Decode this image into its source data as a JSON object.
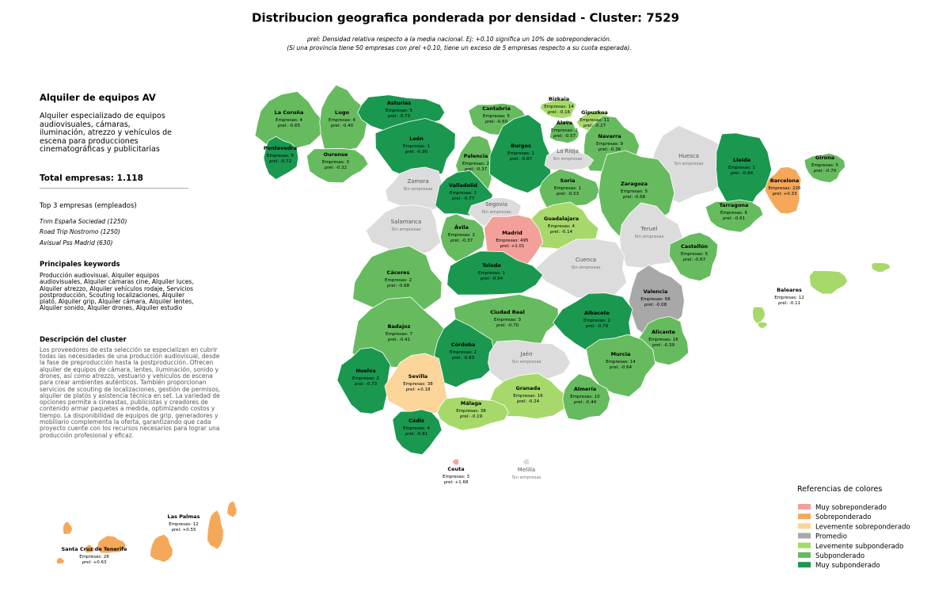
{
  "title": "Distribucion geografica ponderada por densidad - Cluster: 7529",
  "subtitle": [
    "ρrel: Densidad relativa respecto a la media nacional. Ej: +0.10 significa un 10% de sobreponderación.",
    "(Si una provincia tiene 50 empresas con ρrel +0.10, tiene un exceso de 5 empresas respecto a su cuota esperada)."
  ],
  "sidebar": {
    "heading": "Alquiler de equipos AV",
    "summary": "Alquiler especializado de equipos audiovisuales, cámaras, iluminación, atrezzo y vehículos de escena para producciones cinematográficas y publicitarias",
    "total": "Total empresas: 1.118",
    "top_title": "Top 3 empresas (empleados)",
    "top": [
      "Tnm España Sociedad (1250)",
      "Road Trip Nostromo (1250)",
      "Avisual Pss Madrid (630)"
    ],
    "keywords_title": "Principales keywords",
    "keywords": "Producción audiovisual, Alquiler equipos audiovisuales, Alquiler cámaras cine, Alquiler luces, Alquiler atrezzo, Alquiler vehículos rodaje, Servicios postproducción, Scouting localizaciones, Alquiler plató, Alquiler grip, Alquiler cámara, Alquiler lentes, Alquiler sonido, Alquiler drones, Alquiler estudio",
    "description_title": "Descripción del cluster",
    "description": "Los proveedores de esta selección se especializan en cubrir todas las necesidades de una producción audiovisual, desde la fase de preproducción hasta la postproducción. Ofrecen alquiler de equipos de cámara, lentes, iluminación, sonido y drones, así como atrezzo, vestuario y vehículos de escena para crear ambientes auténticos. También proporcionan servicios de scouting de localizaciones, gestión de permisos, alquiler de platós y asistencia técnica en set. La variedad de opciones permite a cineastas, publicistas y creadores de contenido armar paquetes a medida, optimizando costos y tiempo. La disponibilidad de equipos de grip, generadores y mobiliario complementa la oferta, garantizando que cada proyecto cuente con los recursos necesarios para lograr una producción profesional y eficaz."
  },
  "provinces": [
    {
      "name": "La Coruña",
      "count": "Empresas: 4",
      "rho": "ρrel: -0.65",
      "color": "#66bb5e"
    },
    {
      "name": "Lugo",
      "count": "Empresas: 4",
      "rho": "ρrel: -0.40",
      "color": "#66bb5e"
    },
    {
      "name": "Asturias",
      "count": "Empresas: 5",
      "rho": "ρrel: -0.73",
      "color": "#1a9850"
    },
    {
      "name": "Cantabria",
      "count": "Empresas: 5",
      "rho": "ρrel: -0.60",
      "color": "#66bb5e"
    },
    {
      "name": "Bizkaia",
      "count": "Empresas: 14",
      "rho": "ρrel: -0.16",
      "color": "#a7d96a"
    },
    {
      "name": "Gipuzkoa",
      "count": "Empresas: 11",
      "rho": "ρrel: -0.27",
      "color": "#a7d96a"
    },
    {
      "name": "Álava",
      "count": "Empresas: 2",
      "rho": "ρrel: -0.57",
      "color": "#66bb5e"
    },
    {
      "name": "Navarra",
      "count": "Empresas: 9",
      "rho": "ρrel: -0.36",
      "color": "#66bb5e"
    },
    {
      "name": "Pontevedra",
      "count": "Empresas: 5",
      "rho": "ρrel: -0.72",
      "color": "#1a9850"
    },
    {
      "name": "Ourense",
      "count": "Empresas: 3",
      "rho": "ρrel: -0.32",
      "color": "#66bb5e"
    },
    {
      "name": "León",
      "count": "Empresas: 1",
      "rho": "ρrel: -0.90",
      "color": "#1a9850"
    },
    {
      "name": "Palencia",
      "count": "Empresas: 2",
      "rho": "ρrel: -0.37",
      "color": "#66bb5e"
    },
    {
      "name": "Burgos",
      "count": "Empresas: 1",
      "rho": "ρrel: -0.87",
      "color": "#1a9850"
    },
    {
      "name": "La Rioja",
      "status": "Sin empresas",
      "color": "#dcdcdc"
    },
    {
      "name": "Huesca",
      "status": "Sin empresas",
      "color": "#dcdcdc"
    },
    {
      "name": "Lleida",
      "count": "Empresas: 1",
      "rho": "ρrel: -0.84",
      "color": "#1a9850"
    },
    {
      "name": "Girona",
      "count": "Empresas: 5",
      "rho": "ρrel: -0.70",
      "color": "#66bb5e"
    },
    {
      "name": "Barcelona",
      "count": "Empresas: 226",
      "rho": "ρrel: +0.33",
      "color": "#f5a85a"
    },
    {
      "name": "Zamora",
      "status": "Sin empresas",
      "color": "#dcdcdc"
    },
    {
      "name": "Valladolid",
      "count": "Empresas: 2",
      "rho": "ρrel: -0.77",
      "color": "#1a9850"
    },
    {
      "name": "Soria",
      "count": "Empresas: 1",
      "rho": "ρrel: -0.53",
      "color": "#66bb5e"
    },
    {
      "name": "Zaragoza",
      "count": "Empresas: 5",
      "rho": "ρrel: -0.68",
      "color": "#66bb5e"
    },
    {
      "name": "Tarragona",
      "count": "Empresas: 6",
      "rho": "ρrel: -0.61",
      "color": "#66bb5e"
    },
    {
      "name": "Segovia",
      "status": "Sin empresas",
      "color": "#dcdcdc"
    },
    {
      "name": "Salamanca",
      "status": "Sin empresas",
      "color": "#dcdcdc"
    },
    {
      "name": "Guadalajara",
      "count": "Empresas: 4",
      "rho": "ρrel: -0.14",
      "color": "#a7d96a"
    },
    {
      "name": "Teruel",
      "status": "Sin empresas",
      "color": "#dcdcdc"
    },
    {
      "name": "Ávila",
      "count": "Empresas: 2",
      "rho": "ρrel: -0.37",
      "color": "#66bb5e"
    },
    {
      "name": "Madrid",
      "count": "Empresas: 495",
      "rho": "ρrel: +1.01",
      "color": "#f4a09a"
    },
    {
      "name": "Castellón",
      "count": "Empresas: 5",
      "rho": "ρrel: -0.67",
      "color": "#66bb5e"
    },
    {
      "name": "Cuenca",
      "status": "Sin empresas",
      "color": "#dcdcdc"
    },
    {
      "name": "Cáceres",
      "count": "Empresas: 2",
      "rho": "ρrel: -0.68",
      "color": "#66bb5e"
    },
    {
      "name": "Toledo",
      "count": "Empresas: 1",
      "rho": "ρrel: -0.94",
      "color": "#1a9850"
    },
    {
      "name": "Valencia",
      "count": "Empresas: 68",
      "rho": "ρrel: -0.08",
      "color": "#a8a8a8"
    },
    {
      "name": "Baleares",
      "count": "Empresas: 12",
      "rho": "ρrel: -0.11",
      "color": "#a7d96a"
    },
    {
      "name": "Ciudad Real",
      "count": "Empresas: 3",
      "rho": "ρrel: -0.70",
      "color": "#66bb5e"
    },
    {
      "name": "Albacete",
      "count": "Empresas: 2",
      "rho": "ρrel: -0.79",
      "color": "#1a9850"
    },
    {
      "name": "Alicante",
      "count": "Empresas: 16",
      "rho": "ρrel: -0.39",
      "color": "#66bb5e"
    },
    {
      "name": "Badajoz",
      "count": "Empresas: 7",
      "rho": "ρrel: -0.41",
      "color": "#66bb5e"
    },
    {
      "name": "Córdoba",
      "count": "Empresas: 2",
      "rho": "ρrel: -0.83",
      "color": "#1a9850"
    },
    {
      "name": "Jaén",
      "status": "Sin empresas",
      "color": "#dcdcdc"
    },
    {
      "name": "Murcia",
      "count": "Empresas: 14",
      "rho": "ρrel: -0.64",
      "color": "#66bb5e"
    },
    {
      "name": "Huelva",
      "count": "Empresas: 2",
      "rho": "ρrel: -0.73",
      "color": "#1a9850"
    },
    {
      "name": "Sevilla",
      "count": "Empresas: 38",
      "rho": "ρrel: +0.18",
      "color": "#fbd59a"
    },
    {
      "name": "Granada",
      "count": "Empresas: 16",
      "rho": "ρrel: -0.24",
      "color": "#a7d96a"
    },
    {
      "name": "Almería",
      "count": "Empresas: 10",
      "rho": "ρrel: -0.44",
      "color": "#66bb5e"
    },
    {
      "name": "Málaga",
      "count": "Empresas: 38",
      "rho": "ρrel: -0.19",
      "color": "#a7d96a"
    },
    {
      "name": "Cádiz",
      "count": "Empresas: 4",
      "rho": "ρrel: -0.81",
      "color": "#1a9850"
    },
    {
      "name": "Ceuta",
      "count": "Empresas: 3",
      "rho": "ρrel: +1.68",
      "color": "#f4a09a"
    },
    {
      "name": "Melilla",
      "status": "Sin empresas",
      "color": "#dcdcdc"
    },
    {
      "name": "Las Palmas",
      "count": "Empresas: 12",
      "rho": "ρrel: +0.55",
      "color": "#f5a85a"
    },
    {
      "name": "Santa Cruz de Tenerife",
      "count": "Empresas: 28",
      "rho": "ρrel: +0.63",
      "color": "#f5a85a"
    }
  ],
  "legend": {
    "title": "Referencias de colores",
    "items": [
      {
        "label": "Muy sobreponderado",
        "color": "#f4a09a"
      },
      {
        "label": "Sobreponderado",
        "color": "#f5a85a"
      },
      {
        "label": "Levemente sobreponderado",
        "color": "#fbd59a"
      },
      {
        "label": "Promedio",
        "color": "#a8a8a8"
      },
      {
        "label": "Levemente subponderado",
        "color": "#a7d96a"
      },
      {
        "label": "Subponderado",
        "color": "#66bb5e"
      },
      {
        "label": "Muy subponderado",
        "color": "#1a9850"
      }
    ]
  }
}
